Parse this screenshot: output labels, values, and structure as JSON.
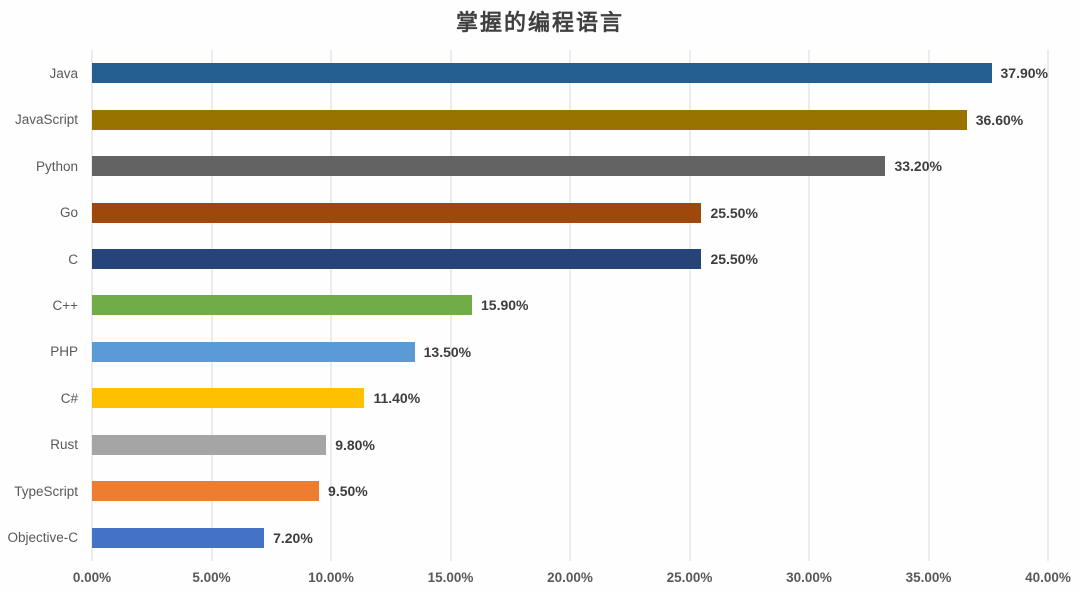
{
  "chart_data": {
    "type": "bar",
    "orientation": "horizontal",
    "title": "掌握的编程语言",
    "categories": [
      "Java",
      "JavaScript",
      "Python",
      "Go",
      "C",
      "C++",
      "PHP",
      "C#",
      "Rust",
      "TypeScript",
      "Objective-C"
    ],
    "values": [
      37.9,
      36.6,
      33.2,
      25.5,
      25.5,
      15.9,
      13.5,
      11.4,
      9.8,
      9.5,
      7.2
    ],
    "value_labels": [
      "37.90%",
      "36.60%",
      "33.20%",
      "25.50%",
      "25.50%",
      "15.90%",
      "13.50%",
      "11.40%",
      "9.80%",
      "9.50%",
      "7.20%"
    ],
    "bar_colors": [
      "#255E91",
      "#997300",
      "#636363",
      "#9E480E",
      "#264478",
      "#70AD47",
      "#5B9BD5",
      "#FFC000",
      "#A5A5A5",
      "#ED7D31",
      "#4472C4"
    ],
    "x_ticks": [
      "0.00%",
      "5.00%",
      "10.00%",
      "15.00%",
      "20.00%",
      "25.00%",
      "30.00%",
      "35.00%",
      "40.00%"
    ],
    "xlim": [
      0,
      40
    ],
    "grid": true,
    "legend": false,
    "y_axis_title_clipped_fragment": ")"
  },
  "colors": {
    "background": "#FEFEFE",
    "gridline": "#D9D9D9",
    "axis_text": "#595959",
    "value_label_text": "#3D3D3D",
    "title_text": "#404040"
  }
}
